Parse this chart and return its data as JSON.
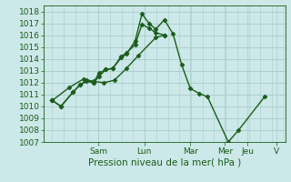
{
  "bg_color": "#cce8e8",
  "line_color": "#1a5c1a",
  "grid_color": "#aacccc",
  "ylabel": "Pression niveau de la mer( hPa )",
  "ylim": [
    1007,
    1018.5
  ],
  "yticks": [
    1007,
    1008,
    1009,
    1010,
    1011,
    1012,
    1013,
    1014,
    1015,
    1016,
    1017,
    1018
  ],
  "xlim": [
    -0.5,
    13.5
  ],
  "day_labels": [
    "Sam",
    "Lun",
    "Mar",
    "Mer",
    "Jeu",
    "V"
  ],
  "day_positions": [
    2.67,
    5.33,
    8.0,
    10.0,
    11.33,
    13.0
  ],
  "series1_x": [
    0,
    0.5,
    1.2,
    1.6,
    2.0,
    2.4,
    2.7,
    3.1,
    3.5,
    4.0,
    4.3,
    4.8,
    5.2,
    5.6,
    6.0,
    6.5,
    7.0,
    7.5,
    8.0,
    8.5,
    9.0,
    10.2,
    10.8,
    12.3
  ],
  "series1_y": [
    1010.5,
    1010.0,
    1011.2,
    1011.8,
    1012.1,
    1012.0,
    1012.5,
    1013.1,
    1013.2,
    1014.1,
    1014.4,
    1015.5,
    1017.8,
    1017.0,
    1016.5,
    1017.3,
    1016.1,
    1013.5,
    1011.5,
    1011.1,
    1010.8,
    1007.0,
    1008.0,
    1010.8
  ],
  "series2_x": [
    0,
    0.5,
    1.2,
    1.6,
    2.0,
    2.4,
    2.7,
    3.1,
    3.5,
    4.0,
    4.3,
    4.8,
    5.2,
    5.6,
    6.0,
    6.5
  ],
  "series2_y": [
    1010.5,
    1010.0,
    1011.2,
    1011.8,
    1012.2,
    1012.0,
    1012.8,
    1013.1,
    1013.2,
    1014.2,
    1014.5,
    1015.2,
    1016.9,
    1016.6,
    1016.2,
    1016.0
  ],
  "series3_x": [
    0,
    1.0,
    1.8,
    2.4,
    3.0,
    3.6,
    4.3,
    5.0,
    6.0,
    6.5
  ],
  "series3_y": [
    1010.5,
    1011.6,
    1012.3,
    1012.1,
    1012.0,
    1012.2,
    1013.2,
    1014.3,
    1015.8,
    1016.0
  ],
  "marker": "D",
  "markersize": 2.5,
  "linewidth": 1.0,
  "fontsize_label": 7.5,
  "fontsize_tick": 6.5
}
